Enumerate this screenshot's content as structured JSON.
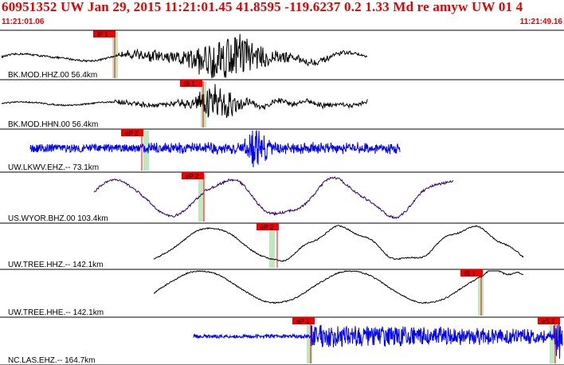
{
  "header": {
    "title": "60951352 UW Jan 29, 2015 11:21:01.45   41.8595 -119.6237  0.2 1.33 Md re amyw UW 01   4",
    "time_start": "11:21:01.06",
    "time_end": "11:21:49.16"
  },
  "colors": {
    "header_text": "#e60000",
    "trace_black": "#000000",
    "trace_blue": "#0000ff",
    "trace_purple": "#330066",
    "pick_tag_bg": "#ee0000",
    "pick_line": "#ff0000",
    "pick_window": "#bfe8bf",
    "separator": "#000000"
  },
  "traces": [
    {
      "label": "BK.MOD.HHZ.00 56.4km",
      "color": "trace_black",
      "picks": [
        {
          "phase": "iP 1"
        }
      ]
    },
    {
      "label": "BK.MOD.HHN.00 56.4km",
      "color": "trace_black",
      "picks": [
        {
          "phase": "iS 1"
        }
      ]
    },
    {
      "label": "UW.LKWV.EHZ.-- 73.1km",
      "color": "trace_blue",
      "picks": [
        {
          "phase": "eP 2"
        }
      ]
    },
    {
      "label": "US.WYOR.BHZ.00 103.4km",
      "color": "trace_purple",
      "picks": [
        {
          "phase": "eP 2"
        }
      ]
    },
    {
      "label": "UW.TREE.HHZ.-- 142.1km",
      "color": "trace_black",
      "picks": [
        {
          "phase": "eP 2"
        }
      ]
    },
    {
      "label": "UW.TREE.HHE.-- 142.1km",
      "color": "trace_black",
      "picks": [
        {
          "phase": "iS 1"
        }
      ]
    },
    {
      "label": "NC.LAS.EHZ.-- 164.7km",
      "color": "trace_blue",
      "picks": [
        {
          "phase": "eP 1"
        },
        {
          "phase": "eS 2"
        }
      ]
    }
  ]
}
